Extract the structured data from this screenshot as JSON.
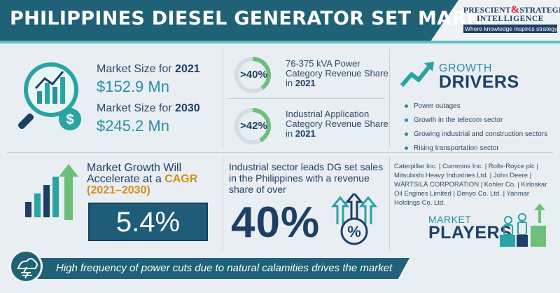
{
  "header": {
    "title": "PHILIPPINES DIESEL GENERATOR SET MARKET"
  },
  "logo": {
    "line1_a": "PRESCIENT",
    "line1_amp": "&",
    "line1_b": "STRATEGIC",
    "line2": "INTELLIGENCE",
    "tagline": "Where knowledge inspires strategy"
  },
  "market_size": [
    {
      "label": "Market Size for",
      "year": "2021",
      "value": "$152.9",
      "unit": "Mn"
    },
    {
      "label": "Market Size for",
      "year": "2030",
      "value": "$245.2",
      "unit": "Mn"
    }
  ],
  "stats": [
    {
      "donut": ">40%",
      "text": "76-375 kVA Power Category Revenue Share in",
      "year": "2021",
      "fill": 0.4
    },
    {
      "donut": ">42%",
      "text": "Industrial Application Category Revenue Share in",
      "year": "2021",
      "fill": 0.42
    }
  ],
  "growth_drivers": {
    "title_line1": "GROWTH",
    "title_line2": "DRIVERS",
    "items": [
      "Power outages",
      "Growth in the telecom sector",
      "Growing industrial and construction sectors",
      "Rising transportation sector"
    ]
  },
  "market_growth": {
    "text_a": "Market Growth Will Accelerate at a",
    "text_hl": "CAGR (2021–2030)",
    "cagr": "5.4%"
  },
  "industrial": {
    "text": "Industrial sector leads DG set sales in the Philippines with a revenue share of over",
    "value": "40%"
  },
  "players": {
    "text": "Caterpillar Inc. | Cummins Inc. | Rolls-Royce plc | Mitsubishi Heavy Industries Ltd. | John Deere | WÄRTSILÄ CORPORATION | Kohler Co. | Kirloskar Oil Engines Limited | Denyo Co. Ltd. | Yanmar Holdings Co. Ltd.",
    "title_line1": "MARKET",
    "title_line2": "PLAYERS"
  },
  "footer": {
    "text": "High frequency of power cuts due to natural calamities drives the market"
  },
  "colors": {
    "primary": "#1f6177",
    "accent": "#2a8fa3",
    "donut": "#6cc07a",
    "highlight": "#d08e1b"
  }
}
